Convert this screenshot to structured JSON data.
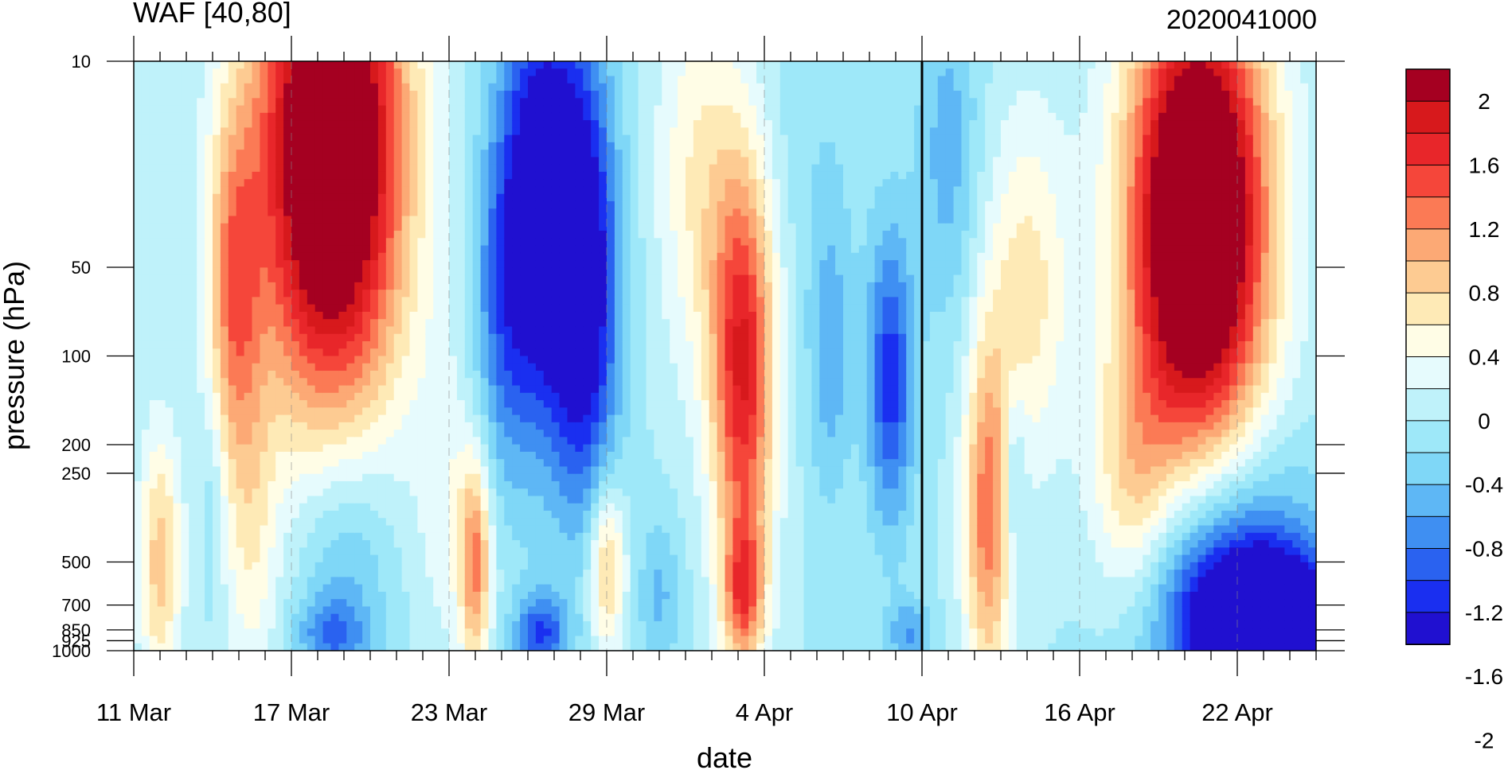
{
  "chart_data": {
    "type": "heatmap",
    "title": "WAF [40,80]",
    "subtitle": "2020041000",
    "xlabel": "date",
    "ylabel": "pressure (hPa)",
    "x_tick_labels": [
      "11 Mar",
      "17 Mar",
      "23 Mar",
      "29 Mar",
      "4 Apr",
      "10 Apr",
      "16 Apr",
      "22 Apr"
    ],
    "x_tick_values": [
      0,
      6,
      12,
      18,
      24,
      30,
      36,
      42
    ],
    "x_range_days": [
      0,
      45
    ],
    "y_tick_labels": [
      "10",
      "50",
      "100",
      "200",
      "250",
      "500",
      "700",
      "850",
      "925",
      "1000"
    ],
    "y_tick_values": [
      10,
      50,
      100,
      200,
      250,
      500,
      700,
      850,
      925,
      1000
    ],
    "y_scale": "log",
    "y_inverted": true,
    "y_range": [
      10,
      1000
    ],
    "forecast_start": "10 Apr",
    "colorbar": {
      "labels": [
        "2",
        "1.6",
        "1.2",
        "0.8",
        "0.4",
        "0",
        "-0.4",
        "-0.8",
        "-1.2",
        "-1.6",
        "-2"
      ],
      "label_values": [
        2,
        1.6,
        1.2,
        0.8,
        0.4,
        0,
        -0.4,
        -0.8,
        -1.2,
        -1.6,
        -2
      ],
      "colors": [
        "#a50021",
        "#d7191c",
        "#e8262a",
        "#f5463a",
        "#fb7a55",
        "#fca975",
        "#fdcb92",
        "#feeab6",
        "#fffde6",
        "#e6fbfd",
        "#bff2fa",
        "#9ee8f9",
        "#7fd7f7",
        "#5eb7f5",
        "#3f8ff2",
        "#2a62f0",
        "#1a2ff0",
        "#2010d0"
      ],
      "placement": "right"
    },
    "centers": [
      {
        "day": 7.5,
        "p": 20,
        "v": 3.0,
        "s": 2.8,
        "sl": 0.9
      },
      {
        "day": 3.8,
        "p": 60,
        "v": 1.1,
        "s": 1.0,
        "sl": 0.6
      },
      {
        "day": 1.0,
        "p": 500,
        "v": 0.9,
        "s": 0.8,
        "sl": 0.45
      },
      {
        "day": 4.5,
        "p": 400,
        "v": 0.5,
        "s": 1.0,
        "sl": 0.6
      },
      {
        "day": 3.0,
        "p": 300,
        "v": -0.25,
        "s": 0.4,
        "sl": 0.35
      },
      {
        "day": 8.0,
        "p": 500,
        "v": -0.6,
        "s": 1.8,
        "sl": 0.45
      },
      {
        "day": 7.5,
        "p": 880,
        "v": -0.6,
        "s": 1.3,
        "sl": 0.12
      },
      {
        "day": 13.0,
        "p": 500,
        "v": 1.2,
        "s": 0.6,
        "sl": 0.35
      },
      {
        "day": 12.0,
        "p": 300,
        "v": 0.35,
        "s": 1.2,
        "sl": 0.55
      },
      {
        "day": 15.5,
        "p": 30,
        "v": -1.6,
        "s": 1.6,
        "sl": 0.75
      },
      {
        "day": 17.2,
        "p": 60,
        "v": -1.4,
        "s": 1.3,
        "sl": 0.75
      },
      {
        "day": 14.0,
        "p": 70,
        "v": -0.6,
        "s": 1.2,
        "sl": 0.6
      },
      {
        "day": 15.5,
        "p": 880,
        "v": -1.0,
        "s": 1.0,
        "sl": 0.14
      },
      {
        "day": 18.0,
        "p": 520,
        "v": 1.0,
        "s": 0.7,
        "sl": 0.28
      },
      {
        "day": 20.0,
        "p": 650,
        "v": -0.45,
        "s": 0.8,
        "sl": 0.28
      },
      {
        "day": 23.2,
        "p": 110,
        "v": 1.8,
        "s": 1.2,
        "sl": 0.7
      },
      {
        "day": 23.2,
        "p": 650,
        "v": 1.2,
        "s": 0.8,
        "sl": 0.25
      },
      {
        "day": 21.5,
        "p": 25,
        "v": 0.6,
        "s": 1.6,
        "sl": 0.7
      },
      {
        "day": 26.5,
        "p": 100,
        "v": -0.5,
        "s": 0.8,
        "sl": 0.5
      },
      {
        "day": 26.0,
        "p": 15,
        "v": -0.15,
        "s": 2.0,
        "sl": 0.9
      },
      {
        "day": 28.8,
        "p": 120,
        "v": -1.1,
        "s": 0.9,
        "sl": 0.5
      },
      {
        "day": 29.5,
        "p": 880,
        "v": -0.6,
        "s": 0.8,
        "sl": 0.12
      },
      {
        "day": 31.0,
        "p": 20,
        "v": -0.5,
        "s": 1.2,
        "sl": 0.6
      },
      {
        "day": 32.5,
        "p": 350,
        "v": 1.3,
        "s": 0.9,
        "sl": 0.6
      },
      {
        "day": 33.5,
        "p": 250,
        "v": -0.5,
        "s": 0.45,
        "sl": 0.3
      },
      {
        "day": 34.0,
        "p": 60,
        "v": 0.7,
        "s": 1.6,
        "sl": 0.6
      },
      {
        "day": 38.0,
        "p": 280,
        "v": 0.7,
        "s": 1.6,
        "sl": 0.45
      },
      {
        "day": 40.5,
        "p": 35,
        "v": 3.2,
        "s": 2.6,
        "sl": 0.8
      },
      {
        "day": 43.5,
        "p": 850,
        "v": -2.6,
        "s": 2.4,
        "sl": 0.22
      },
      {
        "day": 41.0,
        "p": 700,
        "v": -1.0,
        "s": 3.0,
        "sl": 0.4
      },
      {
        "day": 42.5,
        "p": 420,
        "v": -0.5,
        "s": 3.0,
        "sl": 0.4
      }
    ]
  }
}
